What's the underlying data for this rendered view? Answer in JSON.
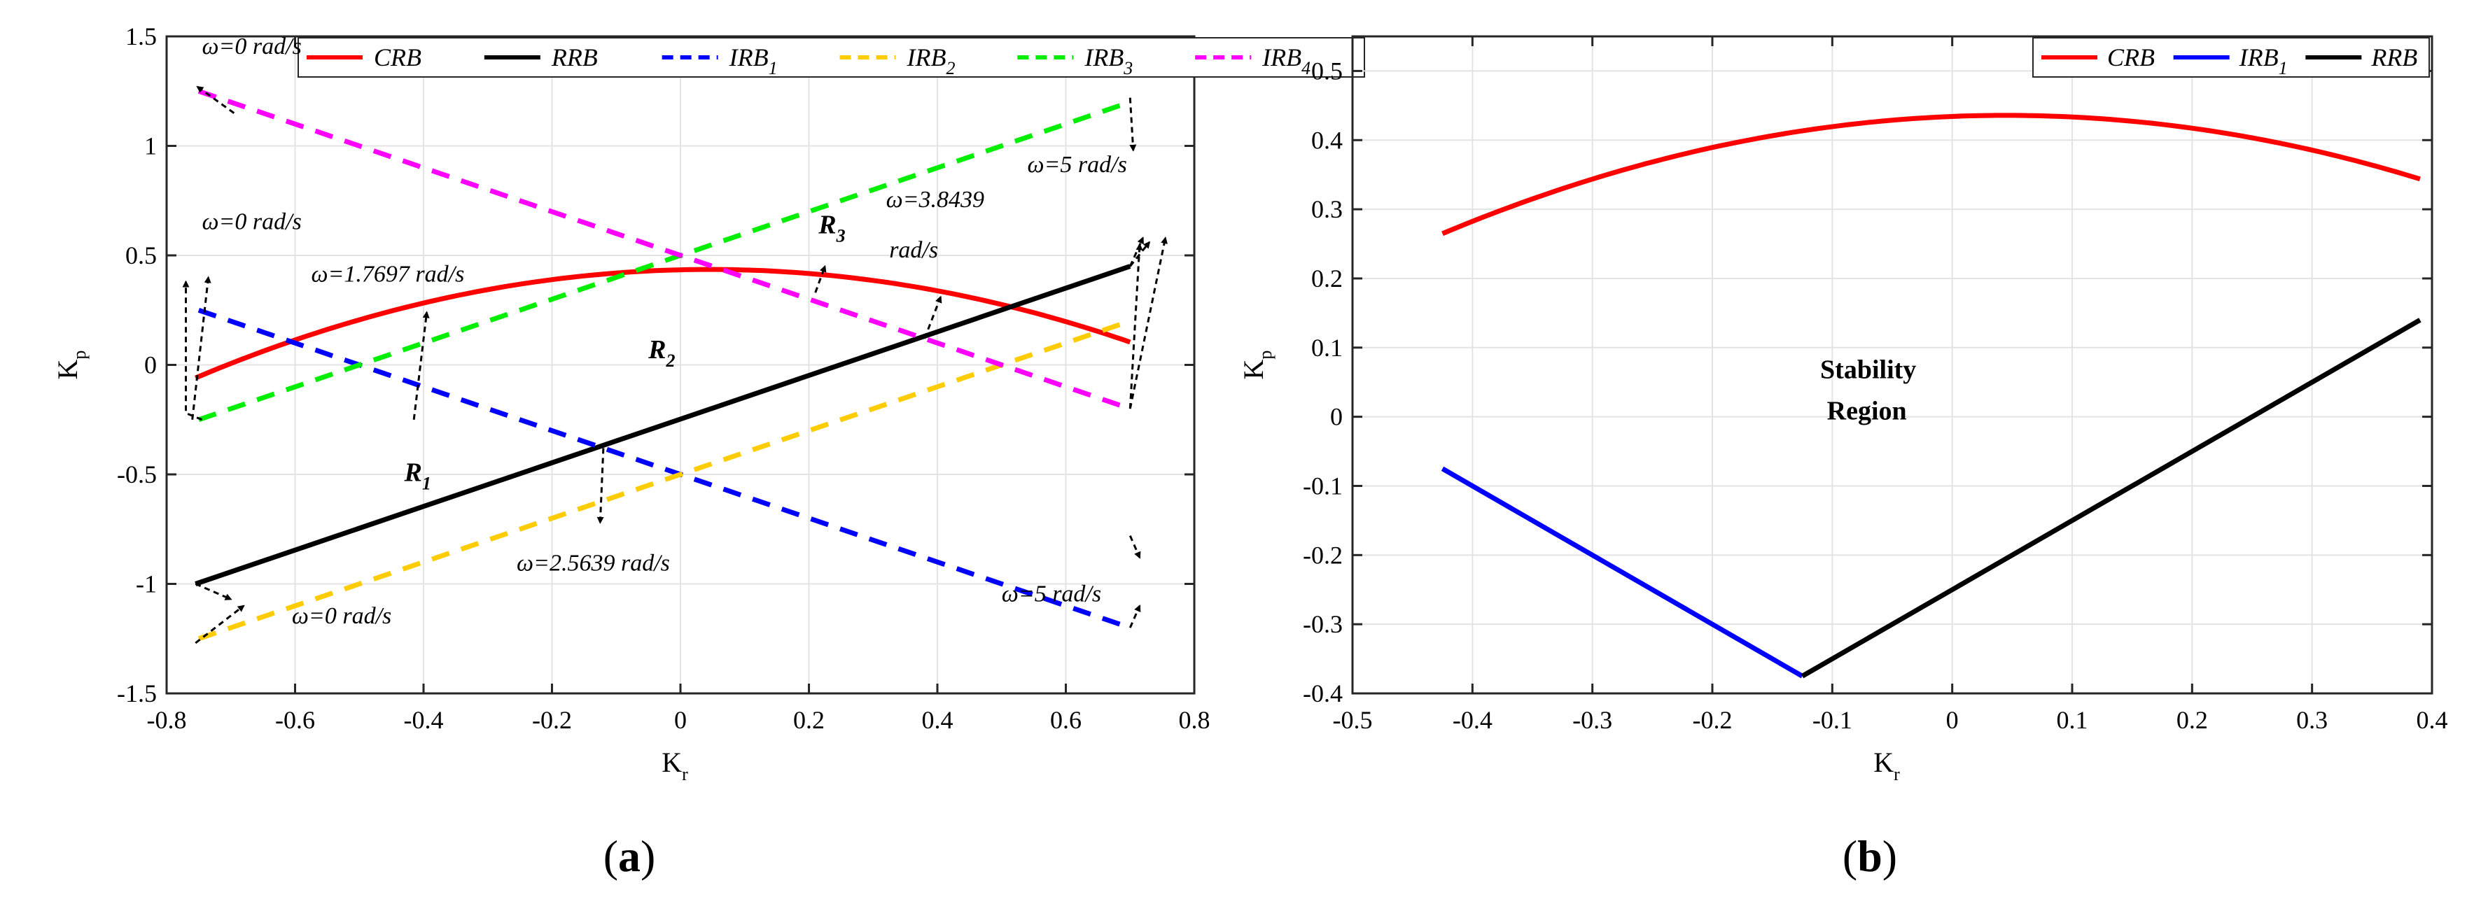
{
  "chart_data": [
    {
      "type": "line",
      "panel": "a",
      "caption": "(a)",
      "xlabel": "K",
      "xlabel_sub": "r",
      "ylabel": "K",
      "ylabel_sub": "p",
      "xlim": [
        -0.8,
        0.8
      ],
      "ylim": [
        -1.5,
        1.5
      ],
      "xticks": [
        -0.8,
        -0.6,
        -0.4,
        -0.2,
        0,
        0.2,
        0.4,
        0.6,
        0.8
      ],
      "xtick_labels": [
        "-0.8",
        "-0.6",
        "-0.4",
        "-0.2",
        "0",
        "0.2",
        "0.4",
        "0.6",
        "0.8"
      ],
      "yticks": [
        -1.5,
        -1,
        -0.5,
        0,
        0.5,
        1,
        1.5
      ],
      "ytick_labels": [
        "-1.5",
        "-1",
        "-0.5",
        "0",
        "0.5",
        "1",
        "1.5"
      ],
      "grid": true,
      "legend_position": "top",
      "series": [
        {
          "name": "CRB",
          "sub": "",
          "color": "#ff0000",
          "style": "solid",
          "curve": "crb",
          "x0": -0.755,
          "x1": 0.7
        },
        {
          "name": "RRB",
          "sub": "",
          "color": "#000000",
          "style": "solid",
          "points": [
            [
              -0.755,
              -1.0
            ],
            [
              0.7,
              0.45
            ]
          ]
        },
        {
          "name": "IRB",
          "sub": "1",
          "color": "#0000ff",
          "style": "dashed",
          "points": [
            [
              -0.75,
              0.25
            ],
            [
              0.7,
              -1.2
            ]
          ]
        },
        {
          "name": "IRB",
          "sub": "2",
          "color": "#ffcc00",
          "style": "dashed",
          "points": [
            [
              -0.75,
              -1.25
            ],
            [
              0.7,
              0.2
            ]
          ]
        },
        {
          "name": "IRB",
          "sub": "3",
          "color": "#00ee00",
          "style": "dashed",
          "points": [
            [
              -0.75,
              -0.25
            ],
            [
              0.7,
              1.2
            ]
          ]
        },
        {
          "name": "IRB",
          "sub": "4",
          "color": "#ff00ff",
          "style": "dashed",
          "points": [
            [
              -0.75,
              1.25
            ],
            [
              0.7,
              -0.2
            ]
          ]
        }
      ],
      "annotations": [
        {
          "text": "ω=0 rad/s",
          "x": -0.745,
          "y": 1.42
        },
        {
          "text": "ω=0 rad/s",
          "x": -0.745,
          "y": 0.62
        },
        {
          "text": "ω=1.7697 rad/s",
          "x": -0.575,
          "y": 0.38
        },
        {
          "text": "ω=0 rad/s",
          "x": -0.605,
          "y": -1.18
        },
        {
          "text": "ω=2.5639 rad/s",
          "x": -0.255,
          "y": -0.94
        },
        {
          "text": "ω=3.8439",
          "x": 0.32,
          "y": 0.72
        },
        {
          "text": "rad/s",
          "x": 0.325,
          "y": 0.49
        },
        {
          "text": "ω=5 rad/s",
          "x": 0.54,
          "y": 0.88
        },
        {
          "text": "ω=5 rad/s",
          "x": 0.5,
          "y": -1.08
        }
      ],
      "regions": [
        {
          "name": "R",
          "sub": "1",
          "x": -0.43,
          "y": -0.53
        },
        {
          "name": "R",
          "sub": "2",
          "x": -0.05,
          "y": 0.03
        },
        {
          "name": "R",
          "sub": "3",
          "x": 0.215,
          "y": 0.6
        }
      ]
    },
    {
      "type": "line",
      "panel": "b",
      "caption": "(b)",
      "xlabel": "K",
      "xlabel_sub": "r",
      "ylabel": "K",
      "ylabel_sub": "p",
      "xlim": [
        -0.5,
        0.4
      ],
      "ylim": [
        -0.4,
        0.55
      ],
      "xticks": [
        -0.5,
        -0.4,
        -0.3,
        -0.2,
        -0.1,
        0,
        0.1,
        0.2,
        0.3,
        0.4
      ],
      "xtick_labels": [
        "-0.5",
        "-0.4",
        "-0.3",
        "-0.2",
        "-0.1",
        "0",
        "0.1",
        "0.2",
        "0.3",
        "0.4"
      ],
      "yticks": [
        -0.4,
        -0.3,
        -0.2,
        -0.1,
        0,
        0.1,
        0.2,
        0.3,
        0.4,
        0.5
      ],
      "ytick_labels": [
        "-0.4",
        "-0.3",
        "-0.2",
        "-0.1",
        "0",
        "0.1",
        "0.2",
        "0.3",
        "0.4",
        "0.5"
      ],
      "grid": true,
      "legend_position": "top-right",
      "series": [
        {
          "name": "CRB",
          "sub": "",
          "color": "#ff0000",
          "style": "solid",
          "curve": "crb",
          "x0": -0.425,
          "x1": 0.39
        },
        {
          "name": "IRB",
          "sub": "1",
          "color": "#0000ff",
          "style": "solid",
          "points": [
            [
              -0.425,
              -0.075
            ],
            [
              -0.125,
              -0.375
            ]
          ]
        },
        {
          "name": "RRB",
          "sub": "",
          "color": "#000000",
          "style": "solid",
          "points": [
            [
              -0.125,
              -0.375
            ],
            [
              0.39,
              0.14
            ]
          ]
        }
      ],
      "annotations": [
        {
          "text": "Stability",
          "x": -0.0,
          "y": 0.06
        },
        {
          "text": "Region",
          "x": -0.0,
          "y": 0.0
        }
      ]
    }
  ]
}
